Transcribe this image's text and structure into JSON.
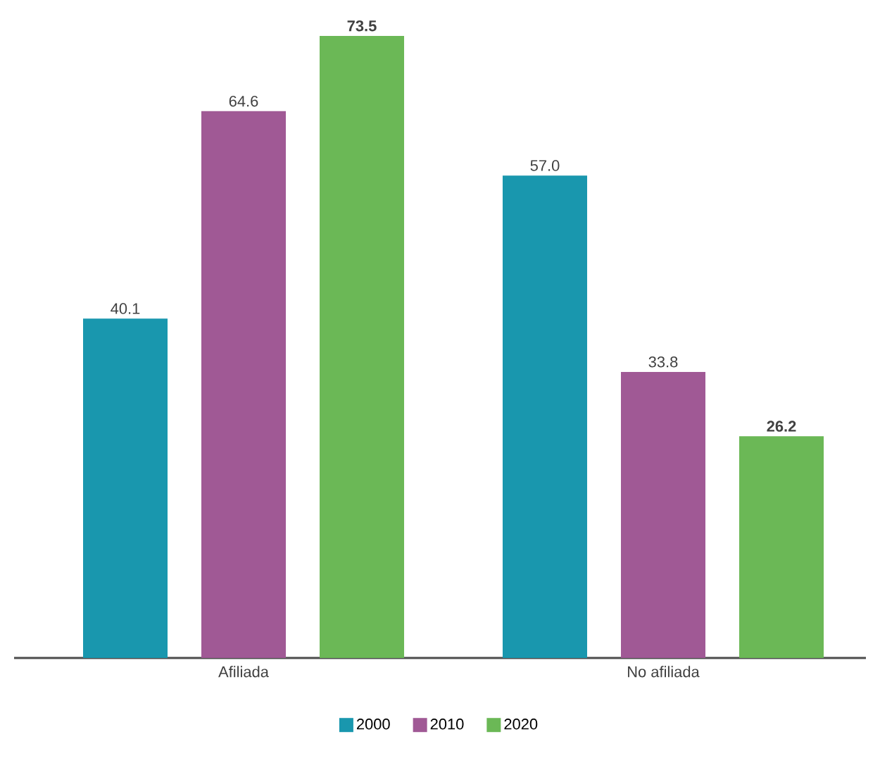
{
  "chart_data": {
    "type": "bar",
    "categories": [
      "Afiliada",
      "No afiliada"
    ],
    "series": [
      {
        "name": "2000",
        "color": "#1997ae",
        "values": [
          40.1,
          57.0
        ],
        "value_labels": [
          "40.1",
          "57.0"
        ]
      },
      {
        "name": "2010",
        "color": "#a05995",
        "values": [
          64.6,
          33.8
        ],
        "value_labels": [
          "64.6",
          "33.8"
        ]
      },
      {
        "name": "2020",
        "color": "#6bb856",
        "values": [
          73.5,
          26.2
        ],
        "value_labels": [
          "**73.5**",
          "**26.2**"
        ]
      }
    ],
    "legend": "bottom"
  }
}
